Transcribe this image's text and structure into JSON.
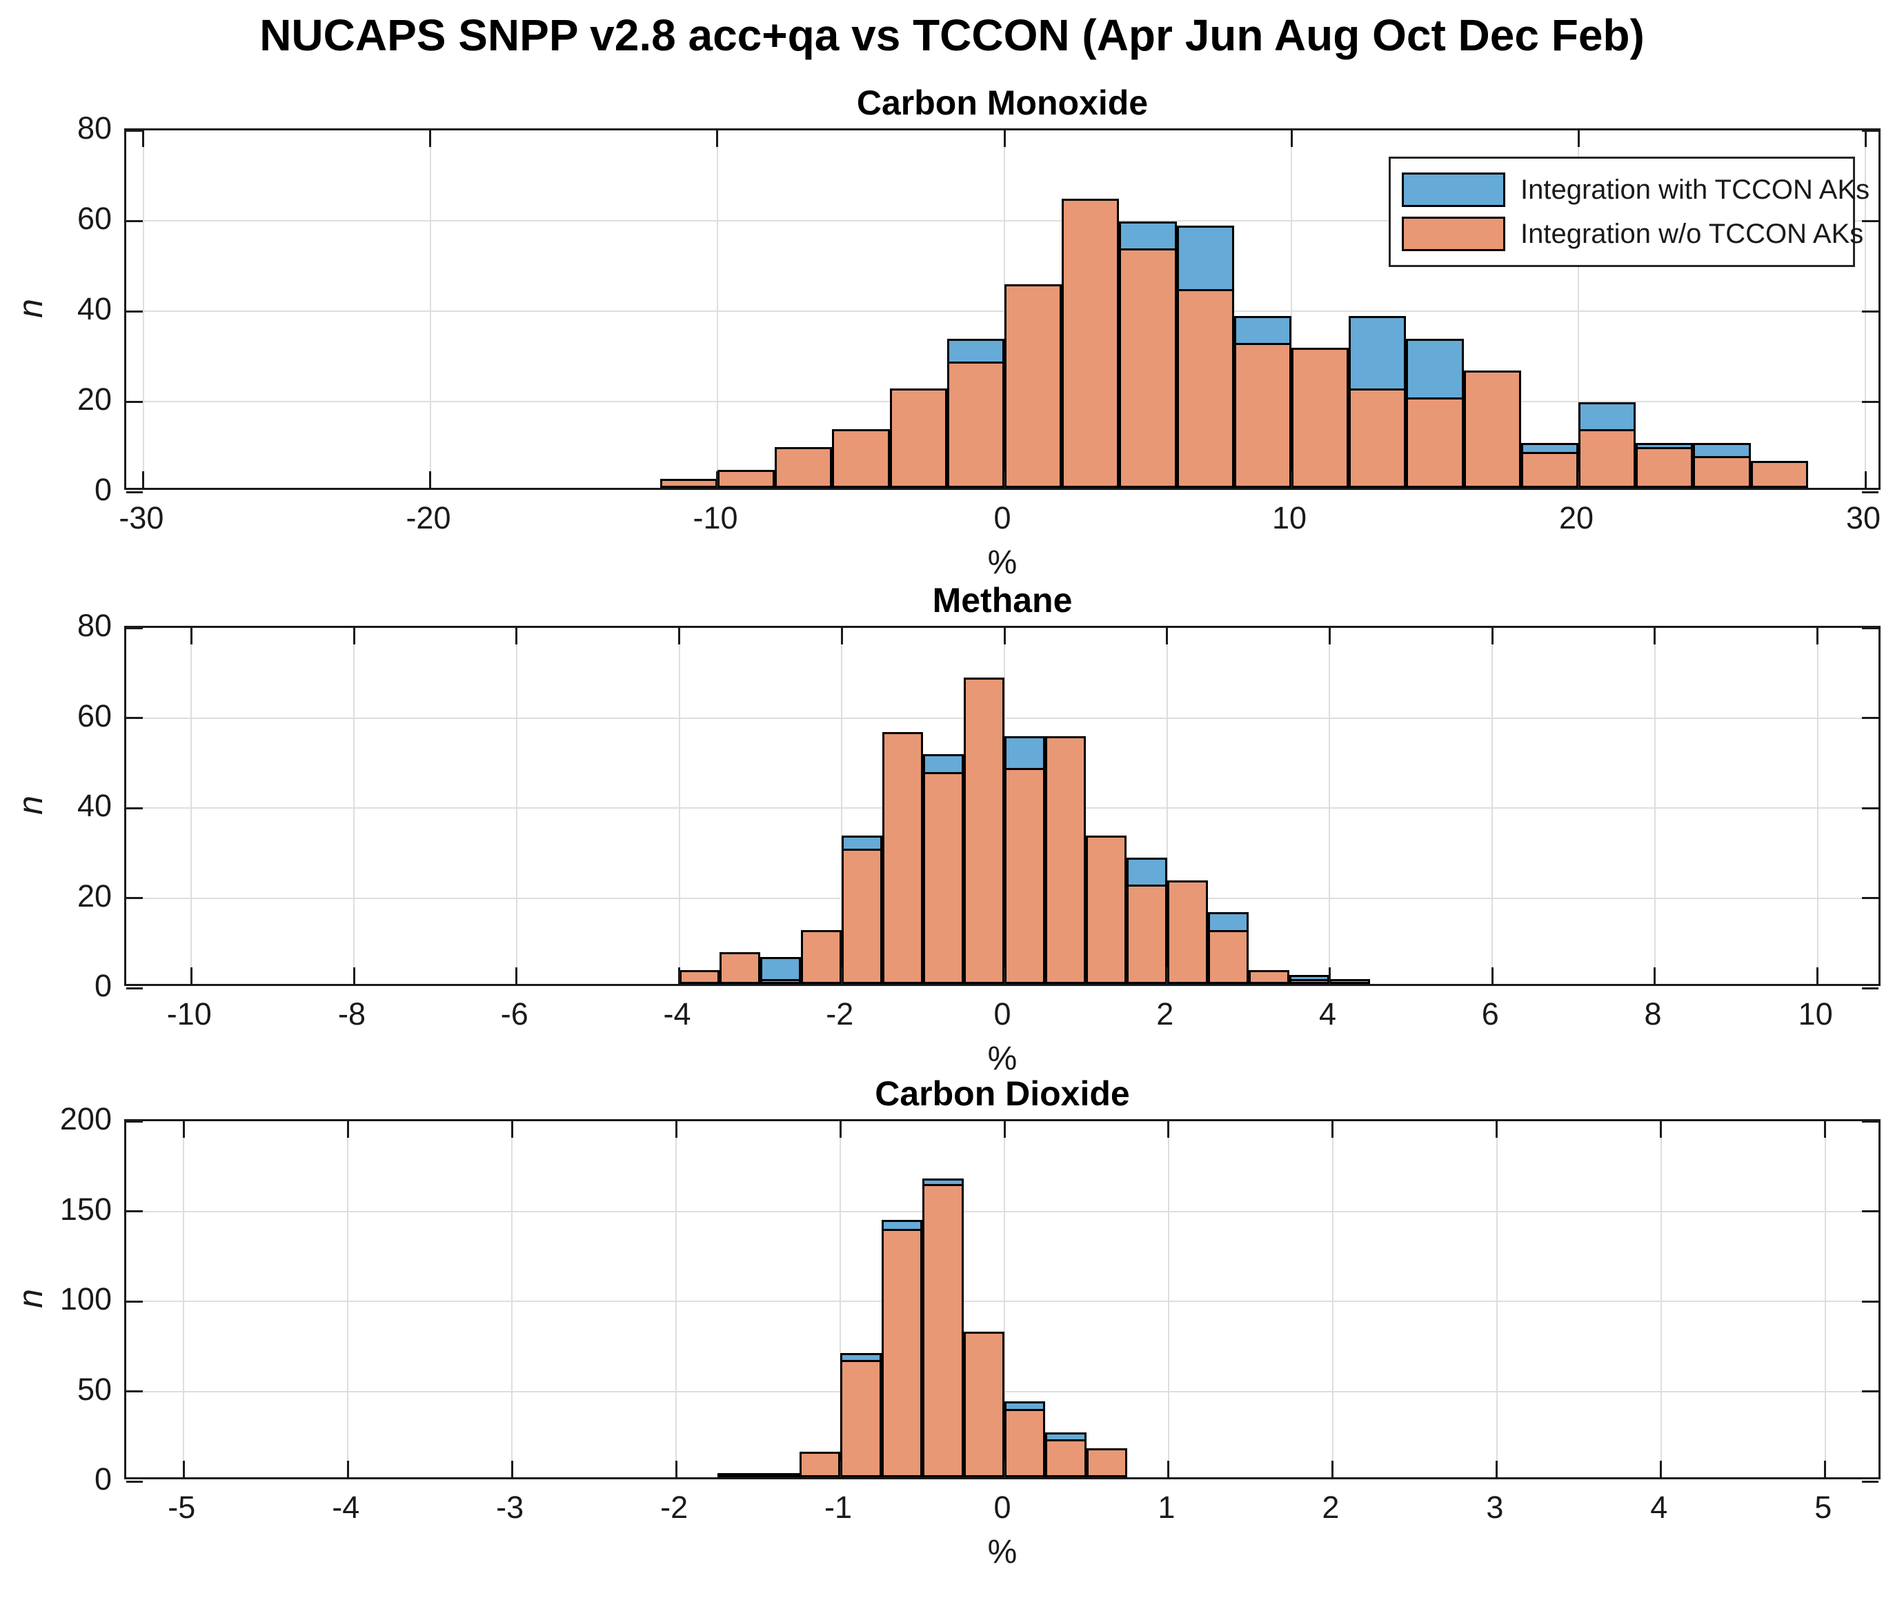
{
  "figure": {
    "title": "NUCAPS SNPP v2.8 acc+qa vs TCCON (Apr Jun Aug Oct Dec Feb)",
    "background": "#FFFFFF"
  },
  "colors": {
    "with_aks_fill": "#66AAD7",
    "without_aks_fill": "#E89875",
    "bar_edge": "#000000",
    "grid": "#DEDEDE",
    "axis": "#1A1A1A",
    "text": "#1A1A1A"
  },
  "legend": {
    "items": [
      {
        "id": "with_aks",
        "label": "Integration with TCCON AKs",
        "color": "#66AAD7"
      },
      {
        "id": "without_aks",
        "label": "Integration w/o TCCON AKs",
        "color": "#E89875"
      }
    ]
  },
  "chart_data": [
    {
      "type": "bar",
      "subtype": "overlaid-histogram",
      "title": "Carbon Monoxide",
      "xlabel": "%",
      "ylabel": "n",
      "xlim": [
        -30.6,
        30.6
      ],
      "ylim": [
        0,
        80
      ],
      "xticks": [
        -30,
        -20,
        -10,
        0,
        10,
        20,
        30
      ],
      "yticks": [
        0,
        20,
        40,
        60,
        80
      ],
      "bin_width": 2,
      "grid": true,
      "legend": true,
      "bins": [
        {
          "x0": -12,
          "without_aks": 2
        },
        {
          "x0": -10,
          "without_aks": 4
        },
        {
          "x0": -8,
          "without_aks": 9
        },
        {
          "x0": -6,
          "without_aks": 13
        },
        {
          "x0": -4,
          "without_aks": 22
        },
        {
          "x0": -2,
          "without_aks": 28,
          "with_aks": 33
        },
        {
          "x0": 0,
          "without_aks": 45
        },
        {
          "x0": 2,
          "without_aks": 64
        },
        {
          "x0": 4,
          "without_aks": 53,
          "with_aks": 59
        },
        {
          "x0": 6,
          "without_aks": 44,
          "with_aks": 58
        },
        {
          "x0": 8,
          "without_aks": 32,
          "with_aks": 38
        },
        {
          "x0": 10,
          "without_aks": 31
        },
        {
          "x0": 12,
          "without_aks": 22,
          "with_aks": 38
        },
        {
          "x0": 14,
          "without_aks": 20,
          "with_aks": 33
        },
        {
          "x0": 16,
          "without_aks": 26
        },
        {
          "x0": 18,
          "without_aks": 8,
          "with_aks": 10
        },
        {
          "x0": 20,
          "without_aks": 13,
          "with_aks": 19
        },
        {
          "x0": 22,
          "without_aks": 9,
          "with_aks": 10
        },
        {
          "x0": 24,
          "without_aks": 7,
          "with_aks": 10
        },
        {
          "x0": 26,
          "without_aks": 6
        }
      ]
    },
    {
      "type": "bar",
      "subtype": "overlaid-histogram",
      "title": "Methane",
      "xlabel": "%",
      "ylabel": "n",
      "xlim": [
        -10.8,
        10.8
      ],
      "ylim": [
        0,
        80
      ],
      "xticks": [
        -10,
        -8,
        -6,
        -4,
        -2,
        0,
        2,
        4,
        6,
        8,
        10
      ],
      "yticks": [
        0,
        20,
        40,
        60,
        80
      ],
      "bin_width": 0.5,
      "grid": true,
      "legend": false,
      "bins": [
        {
          "x0": -4,
          "without_aks": 3
        },
        {
          "x0": -3.5,
          "without_aks": 7
        },
        {
          "x0": -3,
          "without_aks": 1,
          "with_aks": 6
        },
        {
          "x0": -2.5,
          "without_aks": 12
        },
        {
          "x0": -2,
          "without_aks": 30,
          "with_aks": 33
        },
        {
          "x0": -1.5,
          "without_aks": 56
        },
        {
          "x0": -1,
          "without_aks": 47,
          "with_aks": 51
        },
        {
          "x0": -0.5,
          "without_aks": 68
        },
        {
          "x0": 0,
          "without_aks": 48,
          "with_aks": 55
        },
        {
          "x0": 0.5,
          "without_aks": 55
        },
        {
          "x0": 1,
          "without_aks": 33
        },
        {
          "x0": 1.5,
          "without_aks": 22,
          "with_aks": 28
        },
        {
          "x0": 2,
          "without_aks": 23
        },
        {
          "x0": 2.5,
          "without_aks": 12,
          "with_aks": 16
        },
        {
          "x0": 3,
          "without_aks": 3
        },
        {
          "x0": 3.5,
          "without_aks": 1,
          "with_aks": 2
        },
        {
          "x0": 4,
          "without_aks": 1
        }
      ]
    },
    {
      "type": "bar",
      "subtype": "overlaid-histogram",
      "title": "Carbon Dioxide",
      "xlabel": "%",
      "ylabel": "n",
      "xlim": [
        -5.35,
        5.35
      ],
      "ylim": [
        0,
        200
      ],
      "xticks": [
        -5,
        -4,
        -3,
        -2,
        -1,
        0,
        1,
        2,
        3,
        4,
        5
      ],
      "yticks": [
        0,
        50,
        100,
        150,
        200
      ],
      "bin_width": 0.25,
      "grid": true,
      "legend": false,
      "bins": [
        {
          "x0": -1.75,
          "without_aks": 1
        },
        {
          "x0": -1.5,
          "with_aks": 1
        },
        {
          "x0": -1.25,
          "without_aks": 14
        },
        {
          "x0": -1,
          "without_aks": 65,
          "with_aks": 69
        },
        {
          "x0": -0.75,
          "without_aks": 138,
          "with_aks": 143
        },
        {
          "x0": -0.5,
          "without_aks": 163,
          "with_aks": 166
        },
        {
          "x0": -0.25,
          "without_aks": 81
        },
        {
          "x0": 0,
          "without_aks": 38,
          "with_aks": 42
        },
        {
          "x0": 0.25,
          "without_aks": 21,
          "with_aks": 25
        },
        {
          "x0": 0.5,
          "without_aks": 16
        }
      ]
    }
  ]
}
